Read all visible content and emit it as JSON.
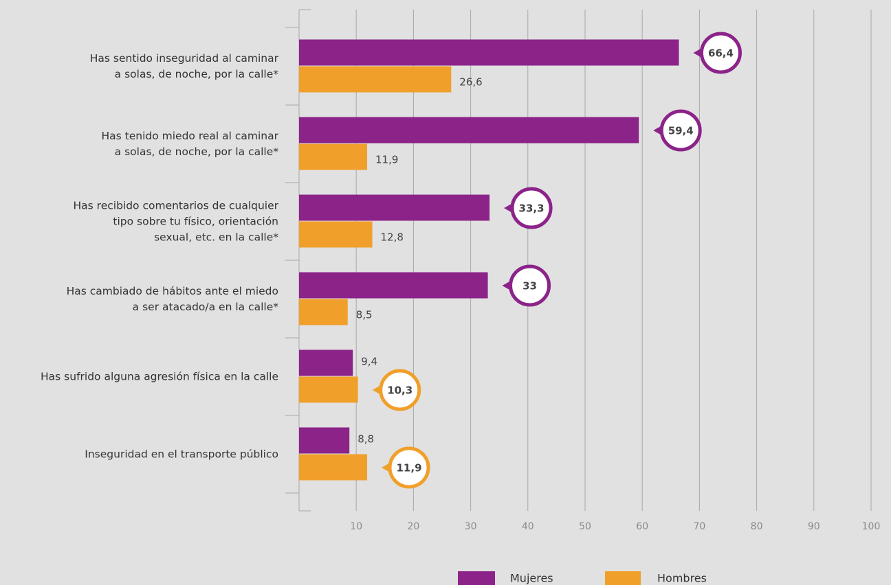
{
  "chart_data": {
    "type": "bar",
    "orientation": "horizontal",
    "categories": [
      [
        "Has sentido inseguridad al caminar",
        "a solas, de noche, por la calle*"
      ],
      [
        "Has tenido miedo real al caminar",
        "a solas, de noche, por la calle*"
      ],
      [
        "Has recibido comentarios de cualquier",
        "tipo sobre tu físico, orientación",
        "sexual, etc. en la calle*"
      ],
      [
        "Has cambiado de hábitos ante el miedo",
        "a ser atacado/a en la calle*"
      ],
      [
        "Has sufrido alguna agresión física en la calle"
      ],
      [
        "Inseguridad en el transporte público"
      ]
    ],
    "series": [
      {
        "name": "Mujeres",
        "color": "#8b2389",
        "values": [
          66.4,
          59.4,
          33.3,
          33,
          9.4,
          8.8
        ],
        "value_labels": [
          "66,4",
          "59,4",
          "33,3",
          "33",
          "9,4",
          "8,8"
        ]
      },
      {
        "name": "Hombres",
        "color": "#f0a02a",
        "values": [
          26.6,
          11.9,
          12.8,
          8.5,
          10.3,
          11.9
        ],
        "value_labels": [
          "26,6",
          "11,9",
          "12,8",
          "8,5",
          "10,3",
          "11,9"
        ]
      }
    ],
    "xlim": [
      0,
      100
    ],
    "xticks": [
      10,
      20,
      30,
      40,
      50,
      60,
      70,
      80,
      90,
      100
    ],
    "grid": true,
    "legend": "bottom"
  }
}
